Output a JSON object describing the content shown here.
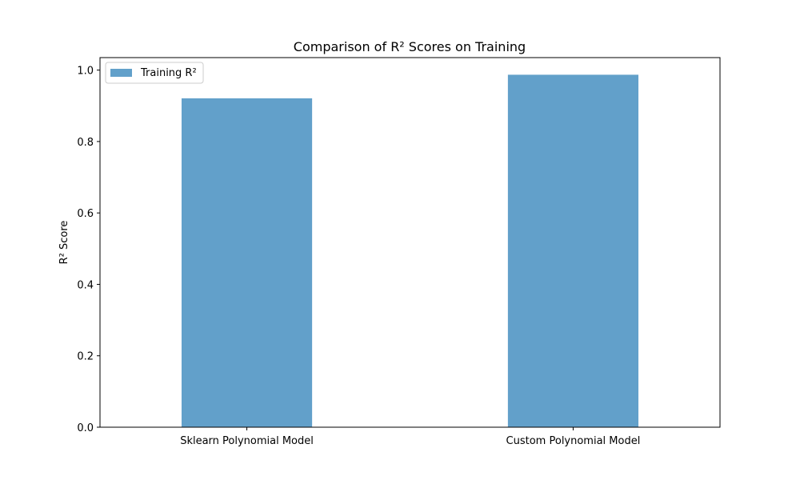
{
  "chart_data": {
    "type": "bar",
    "title": "Comparison of R² Scores on Training",
    "xlabel": "",
    "ylabel": "R² Score",
    "categories": [
      "Sklearn Polynomial Model",
      "Custom Polynomial Model"
    ],
    "series": [
      {
        "name": "Training R²",
        "values": [
          0.921,
          0.987
        ],
        "color": "#1f77b4"
      }
    ],
    "ylim": [
      0,
      1.035
    ],
    "yticks": [
      0.0,
      0.2,
      0.4,
      0.6,
      0.8,
      1.0
    ],
    "ytick_labels": [
      "0.0",
      "0.2",
      "0.4",
      "0.6",
      "0.8",
      "1.0"
    ],
    "legend_position": "top-left",
    "grid": false
  }
}
